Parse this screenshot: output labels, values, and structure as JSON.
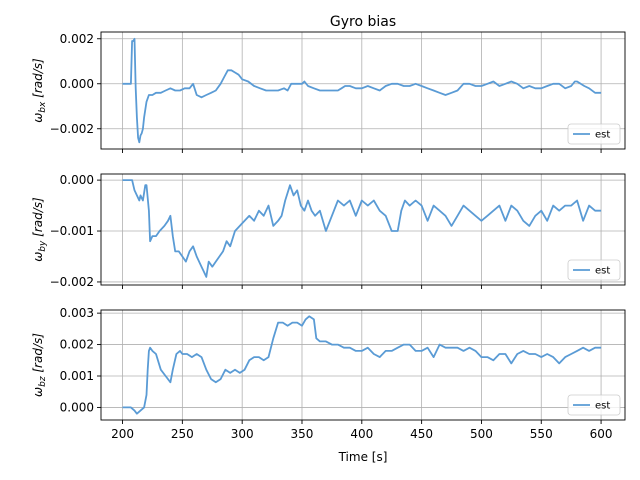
{
  "chart_data": {
    "type": "line",
    "title": "Gyro bias",
    "xlabel": "Time [s]",
    "xlim": [
      182,
      620
    ],
    "xticks": [
      "200",
      "250",
      "300",
      "350",
      "400",
      "450",
      "500",
      "550",
      "600"
    ],
    "grid": true,
    "colors": {
      "series": "#5a9bd5",
      "grid": "#b0b0b0",
      "axis": "#000000"
    },
    "legend_placement": "lower-right",
    "panels": [
      {
        "ylabel": "ω_bx [rad/s]",
        "ylim": [
          -0.0029,
          0.0023
        ],
        "yticks": [
          {
            "label": "0.002",
            "value": 0.002
          },
          {
            "label": "0.000",
            "value": 0.0
          },
          {
            "label": "−0.002",
            "value": -0.002
          }
        ],
        "series": [
          {
            "name": "est",
            "x": [
              200,
              207,
              208,
              209,
              210,
              211,
              212,
              213,
              214,
              215,
              216,
              217,
              218,
              220,
              222,
              225,
              228,
              232,
              236,
              240,
              244,
              248,
              252,
              256,
              259,
              262,
              266,
              270,
              274,
              278,
              282,
              285,
              288,
              291,
              294,
              297,
              300,
              305,
              310,
              315,
              320,
              325,
              330,
              335,
              338,
              341,
              345,
              350,
              352,
              355,
              360,
              365,
              370,
              375,
              380,
              383,
              386,
              390,
              395,
              400,
              405,
              410,
              415,
              420,
              425,
              430,
              435,
              440,
              445,
              450,
              455,
              460,
              465,
              470,
              475,
              480,
              485,
              490,
              495,
              500,
              505,
              510,
              515,
              520,
              525,
              530,
              535,
              540,
              545,
              550,
              555,
              560,
              565,
              570,
              575,
              578,
              580,
              583,
              586,
              590,
              595,
              600
            ],
            "y": [
              0.0,
              0.0,
              0.0019,
              0.0019,
              0.002,
              -0.0002,
              -0.0015,
              -0.0024,
              -0.0026,
              -0.0023,
              -0.0022,
              -0.002,
              -0.0015,
              -0.0008,
              -0.0005,
              -0.0005,
              -0.0004,
              -0.0004,
              -0.0003,
              -0.0002,
              -0.0003,
              -0.0003,
              -0.0002,
              -0.0002,
              0.0,
              -0.0005,
              -0.0006,
              -0.0005,
              -0.0004,
              -0.0003,
              0.0,
              0.0003,
              0.0006,
              0.0006,
              0.0005,
              0.0004,
              0.0002,
              0.0001,
              -0.0001,
              -0.0002,
              -0.0003,
              -0.0003,
              -0.0003,
              -0.0002,
              -0.0003,
              0.0,
              0.0,
              0.0,
              0.0001,
              -0.0001,
              -0.0002,
              -0.0003,
              -0.0003,
              -0.0003,
              -0.0003,
              -0.0002,
              -0.0001,
              -0.0001,
              -0.0002,
              -0.0002,
              -0.0001,
              -0.0002,
              -0.0003,
              -0.0001,
              0.0,
              0.0,
              -0.0001,
              -0.0001,
              0.0,
              -0.0001,
              -0.0002,
              -0.0003,
              -0.0004,
              -0.0005,
              -0.0004,
              -0.0003,
              0.0,
              0.0,
              -0.0001,
              -0.0001,
              0.0,
              0.0001,
              -0.0001,
              0.0,
              0.0001,
              0.0,
              -0.0002,
              -0.0001,
              -0.0002,
              -0.0002,
              -0.0001,
              0.0,
              0.0,
              -0.0002,
              -0.0001,
              0.0001,
              0.0001,
              0.0,
              -0.0001,
              -0.0002,
              -0.0004,
              -0.0004
            ]
          }
        ]
      },
      {
        "ylabel": "ω_by [rad/s]",
        "ylim": [
          -0.00206,
          0.00012
        ],
        "yticks": [
          {
            "label": "0.000",
            "value": 0.0
          },
          {
            "label": "−0.001",
            "value": -0.001
          },
          {
            "label": "−0.002",
            "value": -0.002
          }
        ],
        "series": [
          {
            "name": "est",
            "x": [
              200,
              205,
              208,
              210,
              212,
              214,
              215,
              217,
              219,
              220,
              222,
              223,
              225,
              228,
              231,
              235,
              238,
              240,
              242,
              244,
              247,
              250,
              253,
              256,
              259,
              262,
              264,
              266,
              268,
              270,
              272,
              275,
              278,
              281,
              284,
              287,
              290,
              294,
              298,
              302,
              306,
              310,
              314,
              318,
              322,
              326,
              330,
              333,
              336,
              340,
              343,
              346,
              349,
              352,
              355,
              358,
              361,
              365,
              370,
              375,
              380,
              385,
              390,
              395,
              400,
              405,
              410,
              415,
              420,
              425,
              430,
              433,
              436,
              440,
              445,
              450,
              455,
              460,
              465,
              470,
              475,
              480,
              485,
              490,
              495,
              500,
              505,
              510,
              515,
              520,
              525,
              530,
              535,
              540,
              545,
              550,
              555,
              560,
              565,
              570,
              575,
              580,
              585,
              590,
              595,
              600
            ],
            "y": [
              0.0,
              0.0,
              0.0,
              -0.0002,
              -0.0003,
              -0.0004,
              -0.0003,
              -0.0004,
              -0.0001,
              -0.0001,
              -0.0006,
              -0.0012,
              -0.0011,
              -0.0011,
              -0.001,
              -0.0009,
              -0.0008,
              -0.0007,
              -0.0011,
              -0.0014,
              -0.0014,
              -0.0015,
              -0.0016,
              -0.0014,
              -0.0013,
              -0.0015,
              -0.0016,
              -0.0017,
              -0.0018,
              -0.0019,
              -0.0016,
              -0.0017,
              -0.0016,
              -0.0015,
              -0.0014,
              -0.0012,
              -0.0013,
              -0.001,
              -0.0009,
              -0.0008,
              -0.0007,
              -0.0008,
              -0.0006,
              -0.0007,
              -0.0005,
              -0.0009,
              -0.0008,
              -0.0007,
              -0.0004,
              -0.0001,
              -0.0003,
              -0.0002,
              -0.0005,
              -0.0006,
              -0.0004,
              -0.0006,
              -0.0007,
              -0.0006,
              -0.001,
              -0.0007,
              -0.0004,
              -0.0005,
              -0.0004,
              -0.0007,
              -0.0004,
              -0.0005,
              -0.0004,
              -0.0006,
              -0.0007,
              -0.001,
              -0.001,
              -0.0006,
              -0.0004,
              -0.0005,
              -0.0004,
              -0.0005,
              -0.0008,
              -0.0005,
              -0.0006,
              -0.0007,
              -0.0009,
              -0.0007,
              -0.0005,
              -0.0006,
              -0.0007,
              -0.0008,
              -0.0007,
              -0.0006,
              -0.0005,
              -0.0008,
              -0.0005,
              -0.0006,
              -0.0008,
              -0.0009,
              -0.0007,
              -0.0006,
              -0.0008,
              -0.0005,
              -0.0006,
              -0.0005,
              -0.0005,
              -0.0004,
              -0.0008,
              -0.0005,
              -0.0006,
              -0.0006
            ]
          }
        ]
      },
      {
        "ylabel": "ω_bz [rad/s]",
        "ylim": [
          -0.0004,
          0.0031
        ],
        "yticks": [
          {
            "label": "0.003",
            "value": 0.003
          },
          {
            "label": "0.002",
            "value": 0.002
          },
          {
            "label": "0.001",
            "value": 0.001
          },
          {
            "label": "0.000",
            "value": 0.0
          }
        ],
        "series": [
          {
            "name": "est",
            "x": [
              200,
              207,
              210,
              212,
              215,
              218,
              220,
              221,
              222,
              223,
              225,
              228,
              232,
              236,
              240,
              242,
              245,
              248,
              250,
              254,
              258,
              262,
              266,
              270,
              274,
              278,
              282,
              286,
              290,
              294,
              298,
              302,
              306,
              310,
              314,
              318,
              322,
              326,
              330,
              334,
              338,
              342,
              346,
              350,
              353,
              356,
              360,
              362,
              365,
              370,
              375,
              380,
              385,
              390,
              395,
              400,
              405,
              410,
              415,
              420,
              425,
              430,
              435,
              440,
              445,
              450,
              455,
              460,
              465,
              470,
              475,
              480,
              485,
              490,
              495,
              500,
              505,
              510,
              515,
              520,
              525,
              530,
              535,
              540,
              545,
              550,
              555,
              560,
              565,
              570,
              575,
              580,
              585,
              590,
              595,
              600
            ],
            "y": [
              0.0,
              0.0,
              -0.0001,
              -0.0002,
              -0.0001,
              0.0,
              0.0004,
              0.0012,
              0.0018,
              0.0019,
              0.0018,
              0.0017,
              0.0012,
              0.001,
              0.0008,
              0.0012,
              0.0017,
              0.0018,
              0.0017,
              0.0017,
              0.0016,
              0.0017,
              0.0016,
              0.0012,
              0.0009,
              0.0008,
              0.0009,
              0.0012,
              0.0011,
              0.0012,
              0.0011,
              0.0012,
              0.0015,
              0.0016,
              0.0016,
              0.0015,
              0.0016,
              0.0022,
              0.0027,
              0.0027,
              0.0026,
              0.0027,
              0.0027,
              0.0026,
              0.0028,
              0.0029,
              0.0028,
              0.0022,
              0.0021,
              0.0021,
              0.002,
              0.002,
              0.0019,
              0.0019,
              0.0018,
              0.0018,
              0.0019,
              0.0017,
              0.0016,
              0.0018,
              0.0018,
              0.0019,
              0.002,
              0.002,
              0.0018,
              0.0018,
              0.0019,
              0.0016,
              0.002,
              0.0019,
              0.0019,
              0.0019,
              0.0018,
              0.0019,
              0.0018,
              0.0016,
              0.0016,
              0.0015,
              0.0017,
              0.0017,
              0.0014,
              0.0017,
              0.0018,
              0.0017,
              0.0017,
              0.0016,
              0.0017,
              0.0016,
              0.0014,
              0.0016,
              0.0017,
              0.0018,
              0.0019,
              0.0018,
              0.0019,
              0.0019
            ]
          }
        ]
      }
    ]
  }
}
